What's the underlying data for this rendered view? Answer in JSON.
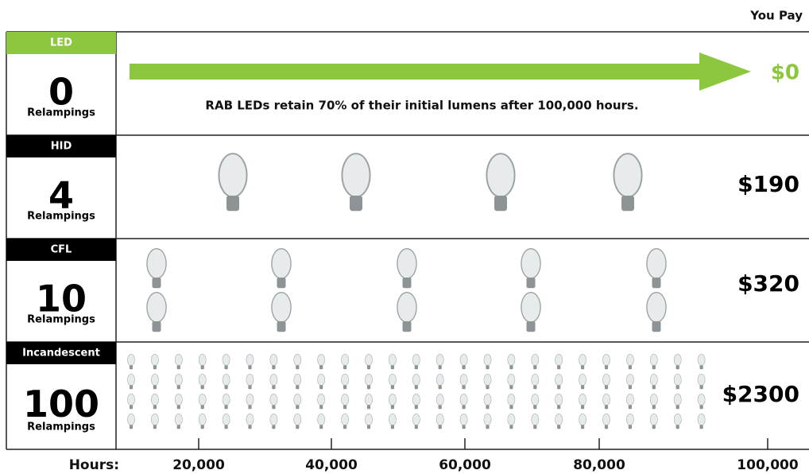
{
  "header": {
    "you_pay": "You Pay"
  },
  "rows": [
    {
      "tech": "LED",
      "count": 0,
      "unit": "Relampings",
      "price": "$0",
      "note": "RAB LEDs retain 70% of their initial lumens after 100,000 hours."
    },
    {
      "tech": "HID",
      "count": 4,
      "unit": "Relampings",
      "price": "$190"
    },
    {
      "tech": "CFL",
      "count": 10,
      "unit": "Relampings",
      "price": "$320"
    },
    {
      "tech": "Incandescent",
      "count": 100,
      "unit": "Relampings",
      "price": "$2300"
    }
  ],
  "axis": {
    "label": "Hours:",
    "ticks": [
      "20,000",
      "40,000",
      "60,000",
      "80,000",
      "100,000"
    ]
  }
}
